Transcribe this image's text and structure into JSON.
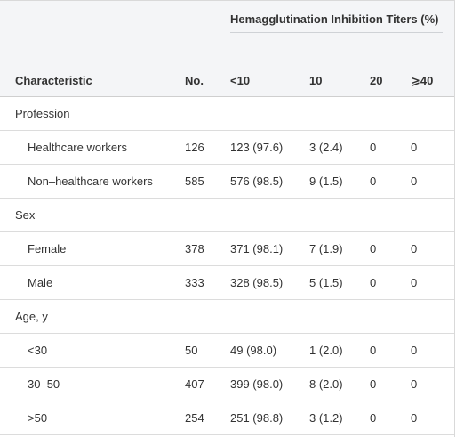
{
  "table": {
    "spanner": "Hemagglutination Inhibition Titers (%)",
    "columns": {
      "characteristic": "Characteristic",
      "no": "No.",
      "lt10": "<10",
      "t10": "10",
      "t20": "20",
      "ge40": "⩾40"
    },
    "rows": [
      {
        "label": "Profession",
        "type": "group",
        "no": "",
        "lt10": "",
        "t10": "",
        "t20": "",
        "ge40": ""
      },
      {
        "label": "Healthcare workers",
        "type": "item",
        "no": "126",
        "lt10": "123 (97.6)",
        "t10": "3 (2.4)",
        "t20": "0",
        "ge40": "0"
      },
      {
        "label": "Non–healthcare workers",
        "type": "item",
        "no": "585",
        "lt10": "576 (98.5)",
        "t10": "9 (1.5)",
        "t20": "0",
        "ge40": "0"
      },
      {
        "label": "Sex",
        "type": "group",
        "no": "",
        "lt10": "",
        "t10": "",
        "t20": "",
        "ge40": ""
      },
      {
        "label": "Female",
        "type": "item",
        "no": "378",
        "lt10": "371 (98.1)",
        "t10": "7 (1.9)",
        "t20": "0",
        "ge40": "0"
      },
      {
        "label": "Male",
        "type": "item",
        "no": "333",
        "lt10": "328 (98.5)",
        "t10": "5 (1.5)",
        "t20": "0",
        "ge40": "0"
      },
      {
        "label": "Age, y",
        "type": "group",
        "no": "",
        "lt10": "",
        "t10": "",
        "t20": "",
        "ge40": ""
      },
      {
        "label": "<30",
        "type": "item",
        "no": "50",
        "lt10": "49 (98.0)",
        "t10": "1 (2.0)",
        "t20": "0",
        "ge40": "0"
      },
      {
        "label": "30–50",
        "type": "item",
        "no": "407",
        "lt10": "399 (98.0)",
        "t10": "8 (2.0)",
        "t20": "0",
        "ge40": "0"
      },
      {
        "label": ">50",
        "type": "item",
        "no": "254",
        "lt10": "251 (98.8)",
        "t10": "3 (1.2)",
        "t20": "0",
        "ge40": "0"
      }
    ]
  }
}
